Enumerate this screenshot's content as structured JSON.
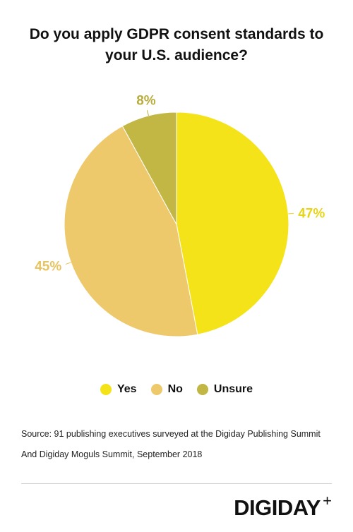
{
  "title": "Do you apply GDPR consent standards to your U.S. audience?",
  "chart_data": {
    "type": "pie",
    "title": "Do you apply GDPR consent standards to your U.S. audience?",
    "slices": [
      {
        "label": "Yes",
        "value": 47,
        "display": "47%",
        "color": "#F5E31A",
        "label_color": "#E8D51A"
      },
      {
        "label": "No",
        "value": 45,
        "display": "45%",
        "color": "#EEC96C",
        "label_color": "#E8C460"
      },
      {
        "label": "Unsure",
        "value": 8,
        "display": "8%",
        "color": "#C2B644",
        "label_color": "#B9AC3C"
      }
    ],
    "legend_position": "bottom"
  },
  "legend": [
    {
      "label": "Yes",
      "color": "#F5E31A"
    },
    {
      "label": "No",
      "color": "#EEC96C"
    },
    {
      "label": "Unsure",
      "color": "#C2B644"
    }
  ],
  "source": "Source: 91 publishing executives surveyed at the Digiday Publishing Summit And Digiday Moguls Summit, September 2018",
  "brand": {
    "name": "DIGIDAY",
    "plus": "+"
  }
}
